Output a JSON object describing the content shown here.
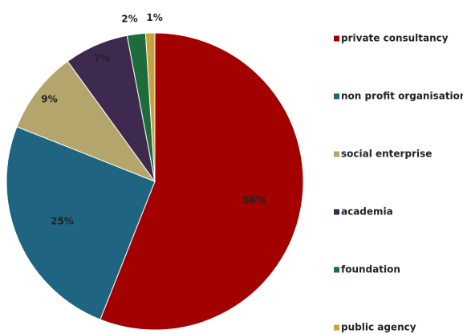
{
  "chart_data": {
    "type": "pie",
    "categories": [
      "private consultancy",
      "non profit organisation",
      "social enterprise",
      "academia",
      "foundation",
      "public agency"
    ],
    "values": [
      56,
      25,
      9,
      7,
      2,
      1
    ],
    "value_labels": [
      "56%",
      "25%",
      "9%",
      "7%",
      "2%",
      "1%"
    ],
    "colors": [
      "#a30000",
      "#1f6480",
      "#b3a56b",
      "#3d2a4e",
      "#1e6b3b",
      "#c7a23e"
    ],
    "legend": "right"
  }
}
